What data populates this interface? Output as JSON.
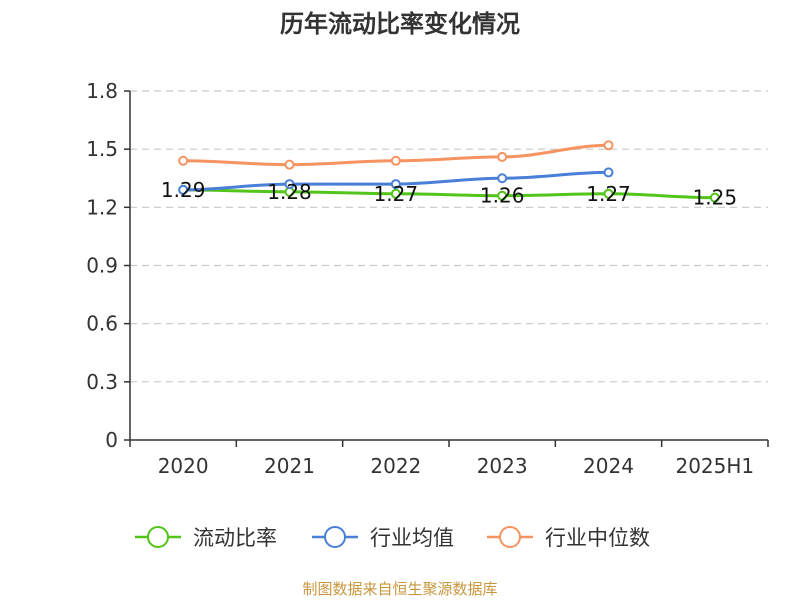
{
  "chart_data": {
    "type": "line",
    "title": "历年流动比率变化情况",
    "categories": [
      "2020",
      "2021",
      "2022",
      "2023",
      "2024",
      "2025H1"
    ],
    "y_ticks": [
      "0",
      "0.3",
      "0.6",
      "0.9",
      "1.2",
      "1.5",
      "1.8"
    ],
    "ylim": [
      0,
      1.8
    ],
    "grid": true,
    "legend_position": "bottom",
    "series": [
      {
        "name": "流动比率",
        "color": "#52c41a",
        "values": [
          1.29,
          1.28,
          1.27,
          1.26,
          1.27,
          1.25
        ],
        "labels": [
          "1.29",
          "1.28",
          "1.27",
          "1.26",
          "1.27",
          "1.25"
        ]
      },
      {
        "name": "行业均值",
        "color": "#4a7fd8",
        "values": [
          1.29,
          1.32,
          1.32,
          1.35,
          1.38,
          null
        ]
      },
      {
        "name": "行业中位数",
        "color": "#f59361",
        "values": [
          1.44,
          1.42,
          1.44,
          1.46,
          1.52,
          null
        ]
      }
    ]
  },
  "source": "制图数据来自恒生聚源数据库"
}
